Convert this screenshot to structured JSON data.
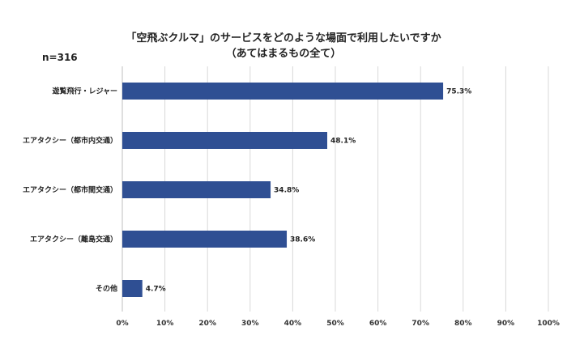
{
  "title_line1": "「空飛ぶクルマ」のサービスをどのような場面で利用したいですか",
  "title_line2": "（あてはまるもの全て）",
  "sample_size": "n=316",
  "chart_data": {
    "type": "bar",
    "orientation": "horizontal",
    "categories": [
      "遊覧飛行・レジャー",
      "エアタクシー（都市内交通）",
      "エアタクシー（都市間交通）",
      "エアタクシー（離島交通）",
      "その他"
    ],
    "values": [
      75.3,
      48.1,
      34.8,
      38.6,
      4.7
    ],
    "value_labels": [
      "75.3%",
      "48.1%",
      "34.8%",
      "38.6%",
      "4.7%"
    ],
    "xlim": [
      0,
      100
    ],
    "x_ticks": [
      "0%",
      "10%",
      "20%",
      "30%",
      "40%",
      "50%",
      "60%",
      "70%",
      "80%",
      "90%",
      "100%"
    ],
    "grid": "vertical",
    "bar_color": "#2f4f93",
    "grid_color": "#d9d9d9"
  }
}
